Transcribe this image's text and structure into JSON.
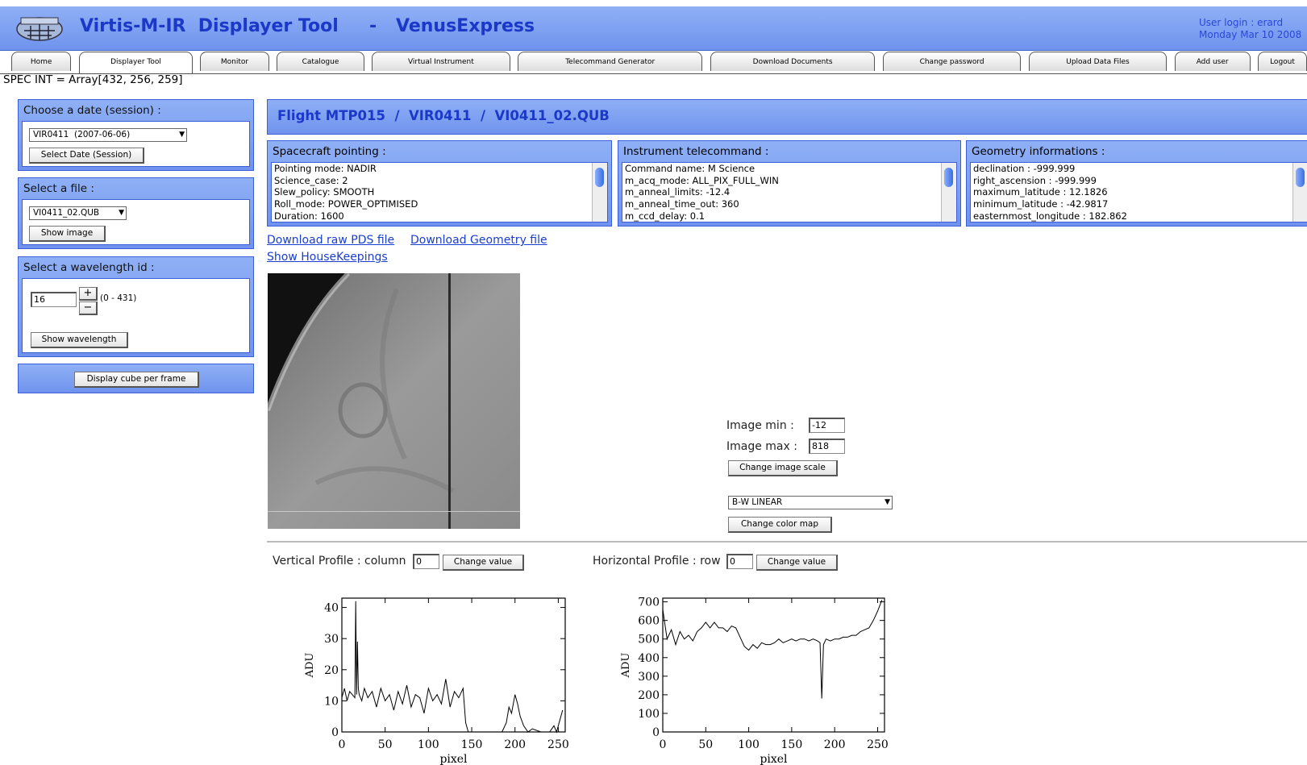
{
  "header": {
    "title": "Virtis-M-IR  Displayer Tool",
    "separator": "-",
    "mission": "VenusExpress",
    "user_login": "User login : erard",
    "date": "Monday Mar 10 2008"
  },
  "tabs": [
    "Home",
    "Displayer Tool",
    "Monitor",
    "Catalogue",
    "Virtual Instrument",
    "Telecommand Generator",
    "Download Documents",
    "Change password",
    "Upload Data Files",
    "Add user",
    "Logout"
  ],
  "status_line": "SPEC INT = Array[432, 256, 259]",
  "sidebar": {
    "date_panel": {
      "title": "Choose a date (session) :",
      "select": "VIR0411  (2007-06-06)",
      "button": "Select Date (Session)"
    },
    "file_panel": {
      "title": "Select a file :",
      "select": "VI0411_02.QUB",
      "button": "Show image"
    },
    "wavelength_panel": {
      "title": "Select a wavelength id :",
      "input": "16",
      "plus": "+",
      "minus": "−",
      "range": "(0 - 431)",
      "button": "Show wavelength"
    },
    "frame_button": "Display cube per frame"
  },
  "main": {
    "heading": "Flight MTP015  /  VIR0411  /  VI0411_02.QUB",
    "boxes": [
      {
        "title": "Spacecraft pointing :",
        "lines": [
          "Pointing mode: NADIR",
          "Science_case: 2",
          "Slew_policy: SMOOTH",
          "Roll_mode: POWER_OPTIMISED",
          "Duration: 1600"
        ]
      },
      {
        "title": "Instrument telecommand :",
        "lines": [
          "Command name: M Science",
          "m_acq_mode: ALL_PIX_FULL_WIN",
          "m_anneal_limits: -12.4",
          "m_anneal_time_out: 360",
          "m_ccd_delay: 0.1"
        ]
      },
      {
        "title": "Geometry informations :",
        "lines": [
          "declination : -999.999",
          "right_ascension : -999.999",
          "maximum_latitude : 12.1826",
          "minimum_latitude : -42.9817",
          "easternmost_longitude : 182.862"
        ]
      }
    ],
    "links": [
      "Download raw PDS file",
      "Download Geometry file",
      "Show HouseKeepings"
    ],
    "image_controls": {
      "min_label": "Image min :",
      "min_value": "-12",
      "max_label": "Image max :",
      "max_value": "818",
      "scale_button": "Change image scale",
      "colormap": "B-W LINEAR",
      "colormap_button": "Change color map"
    },
    "profiles": [
      {
        "label": "Vertical Profile : column",
        "input": "0",
        "button": "Change value"
      },
      {
        "label": "Horizontal Profile : row",
        "input": "0",
        "button": "Change value"
      }
    ]
  },
  "chart_data": [
    {
      "type": "line",
      "xlabel": "pixel",
      "ylabel": "ADU",
      "color": "#000000",
      "x": [
        0,
        3,
        6,
        9,
        12,
        15,
        16,
        17,
        18,
        19,
        20,
        23,
        26,
        30,
        35,
        40,
        45,
        50,
        55,
        60,
        65,
        70,
        75,
        80,
        85,
        90,
        95,
        100,
        105,
        110,
        115,
        120,
        125,
        130,
        135,
        140,
        143,
        146,
        150,
        160,
        170,
        175,
        180,
        185,
        190,
        193,
        196,
        200,
        203,
        206,
        210,
        215,
        220,
        230,
        240,
        245,
        248,
        252,
        255
      ],
      "values": [
        11,
        14,
        10,
        13,
        12,
        11,
        42,
        12,
        29,
        14,
        12,
        10,
        14,
        11,
        13,
        8,
        14,
        10,
        12,
        7,
        13,
        9,
        15,
        8,
        12,
        11,
        6,
        14,
        10,
        12,
        9,
        17,
        8,
        13,
        11,
        14,
        3,
        0,
        0,
        0,
        0,
        0,
        0,
        0,
        3,
        8,
        6,
        12,
        9,
        5,
        2,
        0,
        1,
        0,
        0,
        2,
        0,
        4,
        7
      ],
      "xlim": [
        0,
        258
      ],
      "xticks": [
        0,
        50,
        100,
        150,
        200,
        250
      ],
      "ylim": [
        0,
        43
      ],
      "yticks": [
        0,
        10,
        20,
        30,
        40
      ]
    },
    {
      "type": "line",
      "xlabel": "pixel",
      "ylabel": "ADU",
      "color": "#000000",
      "x": [
        0,
        5,
        10,
        15,
        20,
        25,
        30,
        35,
        40,
        45,
        50,
        55,
        60,
        65,
        70,
        75,
        80,
        85,
        90,
        95,
        100,
        105,
        110,
        115,
        120,
        125,
        130,
        135,
        140,
        145,
        150,
        155,
        160,
        165,
        170,
        175,
        180,
        183,
        185,
        187,
        190,
        195,
        200,
        205,
        210,
        215,
        220,
        225,
        230,
        235,
        240,
        245,
        250,
        255
      ],
      "values": [
        660,
        500,
        550,
        470,
        540,
        500,
        520,
        490,
        540,
        560,
        590,
        560,
        590,
        560,
        560,
        540,
        570,
        560,
        510,
        460,
        440,
        470,
        450,
        480,
        470,
        470,
        480,
        500,
        480,
        490,
        500,
        490,
        500,
        500,
        490,
        500,
        490,
        480,
        180,
        470,
        500,
        490,
        500,
        500,
        510,
        510,
        520,
        520,
        540,
        550,
        560,
        600,
        650,
        710
      ],
      "xlim": [
        0,
        258
      ],
      "xticks": [
        0,
        50,
        100,
        150,
        200,
        250
      ],
      "ylim": [
        0,
        720
      ],
      "yticks": [
        0,
        100,
        200,
        300,
        400,
        500,
        600,
        700
      ]
    }
  ]
}
